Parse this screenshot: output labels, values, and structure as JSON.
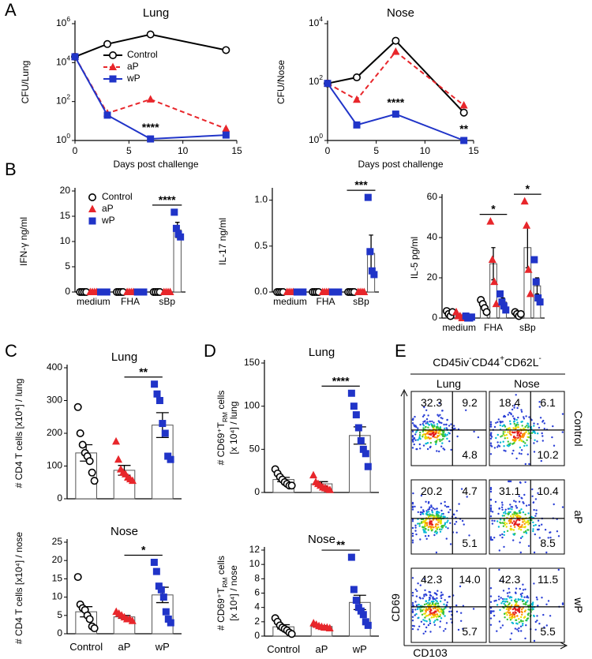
{
  "panel_letters": [
    "A",
    "B",
    "C",
    "D",
    "E"
  ],
  "chart_data": [
    {
      "type": "line",
      "title": "Lung",
      "x_label": "Days post challenge",
      "y_label": "CFU/Lung",
      "x": [
        0,
        3,
        7,
        14
      ],
      "xlim": [
        0,
        15
      ],
      "xticks": [
        0,
        5,
        10,
        15
      ],
      "log_y": true,
      "ylim": [
        1,
        1000000
      ],
      "yticks": [
        {
          "value": 1,
          "label": "10^0"
        },
        {
          "value": 100,
          "label": "10^2"
        },
        {
          "value": 10000,
          "label": "10^4"
        },
        {
          "value": 1000000,
          "label": "10^6"
        }
      ],
      "legend": "upper left",
      "series": [
        {
          "name": "Control",
          "color": "#000000",
          "marker": "circle",
          "line_style": "solid",
          "values": [
            20000,
            90000,
            280000,
            44000
          ]
        },
        {
          "name": "aP",
          "color": "#e8262b",
          "marker": "triangle",
          "line_style": "dashed",
          "values": [
            20000,
            25,
            130,
            4
          ]
        },
        {
          "name": "wP",
          "color": "#2034c8",
          "marker": "square",
          "line_style": "solid",
          "values": [
            20000,
            20,
            1.2,
            1.9
          ]
        }
      ],
      "annotations": [
        {
          "text": "****",
          "x": 7
        }
      ]
    },
    {
      "type": "line",
      "title": "Nose",
      "x_label": "Days post challenge",
      "y_label": "CFU/Nose",
      "x": [
        0,
        3,
        7,
        14
      ],
      "xlim": [
        0,
        15
      ],
      "xticks": [
        0,
        5,
        10,
        15
      ],
      "log_y": true,
      "ylim": [
        1,
        10000
      ],
      "yticks": [
        {
          "value": 1,
          "label": "10^0"
        },
        {
          "value": 100,
          "label": "10^2"
        },
        {
          "value": 10000,
          "label": "10^4"
        }
      ],
      "series": [
        {
          "color": "#000000",
          "marker": "circle",
          "line_style": "solid",
          "values": [
            90,
            145,
            2600,
            9
          ]
        },
        {
          "color": "#e8262b",
          "marker": "triangle",
          "line_style": "dashed",
          "values": [
            90,
            25,
            1100,
            16
          ]
        },
        {
          "color": "#2034c8",
          "marker": "square",
          "line_style": "solid",
          "values": [
            90,
            3.4,
            8,
            1
          ]
        }
      ],
      "annotations": [
        {
          "text": "****",
          "x": 7
        },
        {
          "text": "**",
          "x": 14
        }
      ]
    },
    {
      "type": "bar",
      "y_label": "IFN-γ ng/ml",
      "categories": [
        "medium",
        "FHA",
        "sBp"
      ],
      "ylim": [
        0,
        20
      ],
      "yticks": [
        0,
        5,
        10,
        15,
        20
      ],
      "legend": "upper left",
      "series": [
        {
          "name": "Control",
          "color": "#000000",
          "marker": "circle",
          "values": [
            0,
            0,
            0
          ],
          "errors": [
            0,
            0,
            0
          ],
          "points": [
            [
              0,
              0,
              0,
              0
            ],
            [
              0,
              0,
              0,
              0
            ],
            [
              0,
              0,
              0,
              0
            ]
          ]
        },
        {
          "name": "aP",
          "color": "#e8262b",
          "marker": "triangle",
          "values": [
            0,
            0,
            0
          ],
          "errors": [
            0,
            0,
            0
          ],
          "points": [
            [
              0,
              0,
              0,
              0
            ],
            [
              0,
              0,
              0,
              0
            ],
            [
              0,
              0,
              0,
              0
            ]
          ]
        },
        {
          "name": "wP",
          "color": "#2034c8",
          "marker": "square",
          "values": [
            0,
            0,
            12.3
          ],
          "errors": [
            0,
            0,
            1.5
          ],
          "points": [
            [
              0,
              0,
              0,
              0
            ],
            [
              0,
              0,
              0,
              0
            ],
            [
              15.8,
              12.6,
              11.5,
              10.9
            ]
          ]
        }
      ],
      "annotations": [
        {
          "text": "****",
          "span": [
            2,
            2
          ]
        }
      ]
    },
    {
      "type": "bar",
      "y_label": "IL-17 ng/ml",
      "categories": [
        "medium",
        "FHA",
        "sBp"
      ],
      "ylim": [
        0,
        1.1
      ],
      "yticks": [
        {
          "value": 0,
          "label": "0.0"
        },
        0.5,
        {
          "value": 1,
          "label": "1.0"
        }
      ],
      "series": [
        {
          "color": "#000000",
          "marker": "circle",
          "values": [
            0,
            0,
            0
          ],
          "errors": [
            0,
            0,
            0
          ],
          "points": [
            [
              0,
              0,
              0,
              0
            ],
            [
              0,
              0,
              0,
              0
            ],
            [
              0,
              0,
              0,
              0
            ]
          ]
        },
        {
          "color": "#e8262b",
          "marker": "triangle",
          "values": [
            0,
            0,
            0
          ],
          "errors": [
            0,
            0,
            0
          ],
          "points": [
            [
              0,
              0,
              0,
              0
            ],
            [
              0,
              0,
              0,
              0
            ],
            [
              0,
              0,
              0,
              0
            ]
          ]
        },
        {
          "color": "#2034c8",
          "marker": "square",
          "values": [
            0,
            0,
            0.42
          ],
          "errors": [
            0,
            0,
            0.2
          ],
          "points": [
            [
              0,
              0,
              0,
              0
            ],
            [
              0,
              0,
              0,
              0
            ],
            [
              1.03,
              0.44,
              0.23,
              0.19
            ]
          ]
        }
      ],
      "annotations": [
        {
          "text": "***",
          "span": [
            2,
            2
          ]
        }
      ]
    },
    {
      "type": "bar",
      "y_label": "IL-5 pg/ml",
      "categories": [
        "medium",
        "FHA",
        "sBp"
      ],
      "ylim": [
        0,
        60
      ],
      "yticks": [
        0,
        20,
        40,
        60
      ],
      "series": [
        {
          "color": "#000000",
          "marker": "circle",
          "values": [
            2.5,
            6,
            2
          ],
          "errors": [
            0.6,
            1.2,
            0.5
          ],
          "points": [
            [
              3.5,
              2,
              1,
              3
            ],
            [
              9,
              7,
              5,
              3
            ],
            [
              3,
              2,
              1,
              2
            ]
          ]
        },
        {
          "color": "#e8262b",
          "marker": "triangle",
          "values": [
            1.3,
            27,
            35
          ],
          "errors": [
            0.7,
            8,
            10
          ],
          "points": [
            [
              3,
              1,
              1,
              0
            ],
            [
              48,
              29,
              18,
              7
            ],
            [
              58,
              46,
              24,
              12
            ]
          ]
        },
        {
          "color": "#2034c8",
          "marker": "square",
          "values": [
            0.5,
            8,
            16
          ],
          "errors": [
            0.3,
            2,
            4
          ],
          "points": [
            [
              1,
              0,
              0,
              0.5
            ],
            [
              12,
              8,
              6,
              4
            ],
            [
              29,
              18,
              10,
              8
            ]
          ]
        }
      ],
      "annotations": [
        {
          "text": "*",
          "span": [
            1,
            1
          ]
        },
        {
          "text": "*",
          "span": [
            2,
            2
          ]
        }
      ]
    },
    {
      "type": "bar",
      "title": "Lung",
      "y_label": "# CD4 T cells [x10⁴] / lung",
      "ylim": [
        0,
        400
      ],
      "yticks": [
        0,
        100,
        200,
        300,
        400
      ],
      "colors": [
        "#000000",
        "#e8262b",
        "#2034c8"
      ],
      "markers": [
        "circle",
        "triangle",
        "square"
      ],
      "values": [
        140,
        87,
        225
      ],
      "errors": [
        25,
        15,
        38
      ],
      "points": [
        [
          280,
          200,
          165,
          140,
          130,
          115,
          80,
          55
        ],
        [
          175,
          120,
          90,
          80,
          75,
          65,
          60,
          55
        ],
        [
          350,
          320,
          300,
          230,
          200,
          130,
          120
        ]
      ],
      "annotations": [
        {
          "text": "**",
          "span": [
            1,
            2
          ]
        }
      ]
    },
    {
      "type": "bar",
      "title": "Nose",
      "y_label": "# CD4 T cells [x10⁴] / nose",
      "categories": [
        "Control",
        "aP",
        "wP"
      ],
      "ylim": [
        0,
        25
      ],
      "yticks": [
        0,
        5,
        10,
        15,
        20,
        25
      ],
      "colors": [
        "#000000",
        "#e8262b",
        "#2034c8"
      ],
      "markers": [
        "circle",
        "triangle",
        "square"
      ],
      "values": [
        6,
        4.6,
        10.6
      ],
      "errors": [
        1.4,
        0.4,
        2.1
      ],
      "points": [
        [
          15.5,
          8,
          7,
          6.5,
          5,
          4,
          2,
          1.5
        ],
        [
          6,
          5.5,
          5,
          4.5,
          4,
          4,
          3.5
        ],
        [
          19.5,
          17,
          13,
          12,
          10,
          6,
          4,
          3
        ]
      ],
      "annotations": [
        {
          "text": "*",
          "span": [
            1,
            2
          ]
        }
      ]
    },
    {
      "type": "bar",
      "title": "Lung",
      "y_label": [
        "# CD69⁺T_RM cells",
        "[x 10⁴] / lung"
      ],
      "ylim": [
        0,
        150
      ],
      "yticks": [
        0,
        50,
        100,
        150
      ],
      "colors": [
        "#000000",
        "#e8262b",
        "#2034c8"
      ],
      "markers": [
        "circle",
        "triangle",
        "square"
      ],
      "values": [
        15,
        10,
        66
      ],
      "errors": [
        2.5,
        2.5,
        10
      ],
      "points": [
        [
          27,
          22,
          18,
          15,
          12,
          10,
          8,
          8
        ],
        [
          20,
          12,
          10,
          8,
          6,
          5,
          4,
          3
        ],
        [
          115,
          100,
          90,
          75,
          60,
          50,
          45,
          30
        ]
      ],
      "annotations": [
        {
          "text": "****",
          "span": [
            1,
            2
          ]
        }
      ]
    },
    {
      "type": "bar",
      "title": "Nose",
      "y_label": [
        "# CD69⁺T_RM cells",
        "[x 10⁴] / nose"
      ],
      "categories": [
        "Control",
        "aP",
        "wP"
      ],
      "ylim": [
        0,
        12
      ],
      "yticks": [
        0,
        2,
        4,
        6,
        8,
        10,
        12
      ],
      "colors": [
        "#000000",
        "#e8262b",
        "#2034c8"
      ],
      "markers": [
        "circle",
        "triangle",
        "square"
      ],
      "values": [
        1.3,
        1.35,
        4.7
      ],
      "errors": [
        0.3,
        0.1,
        1.0
      ],
      "points": [
        [
          2.5,
          2,
          1.5,
          1.2,
          1,
          0.8,
          0.5,
          0.3
        ],
        [
          1.8,
          1.6,
          1.4,
          1.3,
          1.2,
          1.2,
          1.1
        ],
        [
          11,
          6.5,
          5,
          4,
          3.5,
          3,
          2,
          1.5
        ]
      ],
      "annotations": [
        {
          "text": "**",
          "span": [
            1,
            2
          ]
        }
      ]
    }
  ],
  "flow": {
    "title": "CD45iv^-CD44^+CD62L^-",
    "columns": [
      "Lung",
      "Nose"
    ],
    "y_label": "CD69",
    "x_label": "CD103",
    "rows": [
      {
        "label": "Control",
        "quadrants": [
          [
            "32.3",
            "9.2",
            "4.8"
          ],
          [
            "18.4",
            "6.1",
            "10.2"
          ]
        ]
      },
      {
        "label": "aP",
        "quadrants": [
          [
            "20.2",
            "4.7",
            "5.1"
          ],
          [
            "31.1",
            "10.4",
            "8.5"
          ]
        ]
      },
      {
        "label": "wP",
        "quadrants": [
          [
            "42.3",
            "14.0",
            "5.7"
          ],
          [
            "42.3",
            "11.5",
            "5.5"
          ]
        ]
      }
    ]
  }
}
